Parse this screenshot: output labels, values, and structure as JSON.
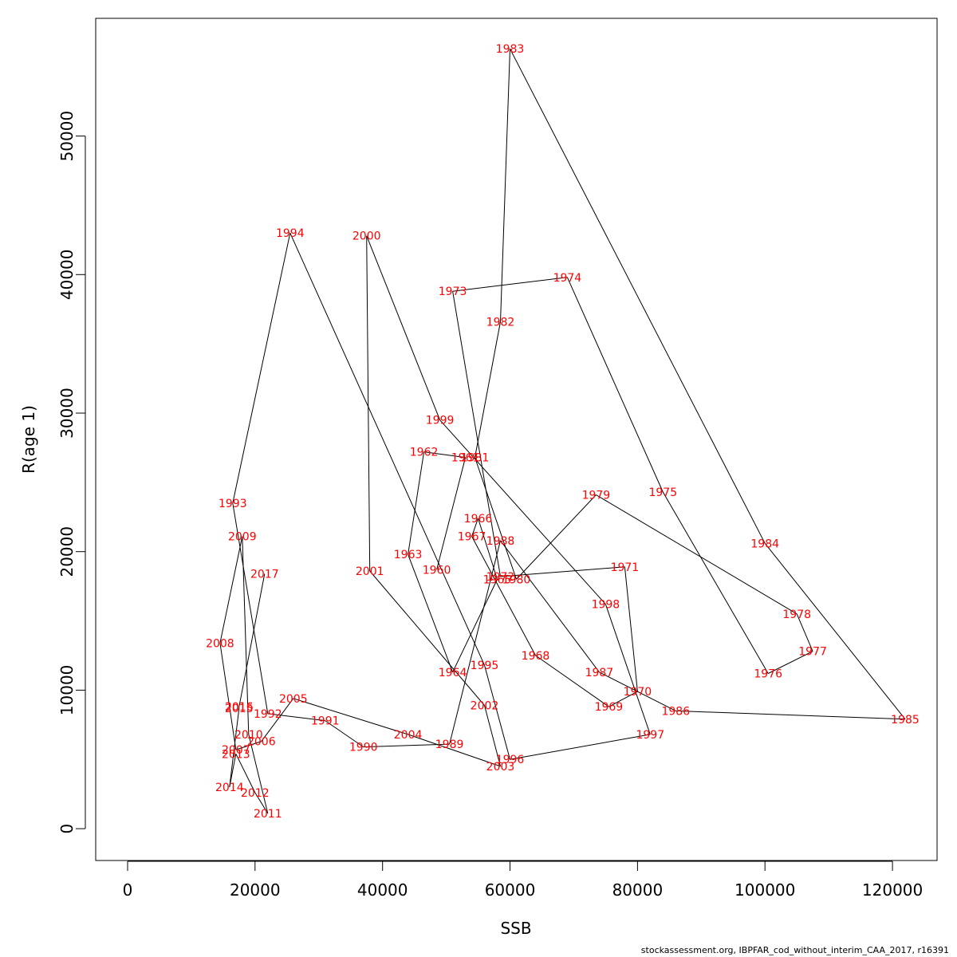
{
  "caption": "stockassessment.org, IBPFAR_cod_without_interim_CAA_2017, r16391",
  "colors": {
    "label": "#ff0000",
    "line": "#000000",
    "axis": "#000000"
  },
  "chart_data": {
    "type": "scatter",
    "connected": true,
    "title": "",
    "xlabel": "SSB",
    "ylabel": "R(age 1)",
    "xlim": [
      -5000,
      127000
    ],
    "ylim": [
      -2300,
      58500
    ],
    "xticks": [
      0,
      20000,
      40000,
      60000,
      80000,
      100000,
      120000
    ],
    "yticks": [
      0,
      10000,
      20000,
      30000,
      40000,
      50000
    ],
    "grid": false,
    "points": [
      {
        "label": "1960",
        "x": 48500,
        "y": 18700
      },
      {
        "label": "1961",
        "x": 53000,
        "y": 26800
      },
      {
        "label": "1962",
        "x": 46500,
        "y": 27200
      },
      {
        "label": "1963",
        "x": 44000,
        "y": 19800
      },
      {
        "label": "1964",
        "x": 51000,
        "y": 11300
      },
      {
        "label": "1965",
        "x": 58000,
        "y": 18000
      },
      {
        "label": "1966",
        "x": 55000,
        "y": 22400
      },
      {
        "label": "1967",
        "x": 54000,
        "y": 21100
      },
      {
        "label": "1968",
        "x": 64000,
        "y": 12500
      },
      {
        "label": "1969",
        "x": 75500,
        "y": 8800
      },
      {
        "label": "1970",
        "x": 80000,
        "y": 9900
      },
      {
        "label": "1971",
        "x": 78000,
        "y": 18900
      },
      {
        "label": "1972",
        "x": 58500,
        "y": 18200
      },
      {
        "label": "1973",
        "x": 51000,
        "y": 38800
      },
      {
        "label": "1974",
        "x": 69000,
        "y": 39800
      },
      {
        "label": "1975",
        "x": 84000,
        "y": 24300
      },
      {
        "label": "1976",
        "x": 100500,
        "y": 11200
      },
      {
        "label": "1977",
        "x": 107500,
        "y": 12800
      },
      {
        "label": "1978",
        "x": 105000,
        "y": 15500
      },
      {
        "label": "1979",
        "x": 73500,
        "y": 24100
      },
      {
        "label": "1980",
        "x": 61000,
        "y": 18000
      },
      {
        "label": "1981",
        "x": 54500,
        "y": 26800
      },
      {
        "label": "1982",
        "x": 58500,
        "y": 36600
      },
      {
        "label": "1983",
        "x": 60000,
        "y": 56300
      },
      {
        "label": "1984",
        "x": 100000,
        "y": 20600
      },
      {
        "label": "1985",
        "x": 122000,
        "y": 7900
      },
      {
        "label": "1986",
        "x": 86000,
        "y": 8500
      },
      {
        "label": "1987",
        "x": 74000,
        "y": 11300
      },
      {
        "label": "1988",
        "x": 58500,
        "y": 20800
      },
      {
        "label": "1989",
        "x": 50500,
        "y": 6100
      },
      {
        "label": "1990",
        "x": 37000,
        "y": 5900
      },
      {
        "label": "1991",
        "x": 31000,
        "y": 7800
      },
      {
        "label": "1992",
        "x": 22000,
        "y": 8300
      },
      {
        "label": "1993",
        "x": 16500,
        "y": 23500
      },
      {
        "label": "1994",
        "x": 25500,
        "y": 43000
      },
      {
        "label": "1995",
        "x": 56000,
        "y": 11800
      },
      {
        "label": "1996",
        "x": 60000,
        "y": 5000
      },
      {
        "label": "1997",
        "x": 82000,
        "y": 6800
      },
      {
        "label": "1998",
        "x": 75000,
        "y": 16200
      },
      {
        "label": "1999",
        "x": 49000,
        "y": 29500
      },
      {
        "label": "2000",
        "x": 37500,
        "y": 42800
      },
      {
        "label": "2001",
        "x": 38000,
        "y": 18600
      },
      {
        "label": "2002",
        "x": 56000,
        "y": 8900
      },
      {
        "label": "2003",
        "x": 58500,
        "y": 4500
      },
      {
        "label": "2004",
        "x": 44000,
        "y": 6800
      },
      {
        "label": "2005",
        "x": 26000,
        "y": 9400
      },
      {
        "label": "2006",
        "x": 21000,
        "y": 6300
      },
      {
        "label": "2007",
        "x": 17000,
        "y": 5700
      },
      {
        "label": "2008",
        "x": 14500,
        "y": 13400
      },
      {
        "label": "2009",
        "x": 18000,
        "y": 21100
      },
      {
        "label": "2010",
        "x": 19000,
        "y": 6800
      },
      {
        "label": "2011",
        "x": 22000,
        "y": 1100
      },
      {
        "label": "2012",
        "x": 20000,
        "y": 2600
      },
      {
        "label": "2013",
        "x": 17000,
        "y": 5400
      },
      {
        "label": "2014",
        "x": 16000,
        "y": 3000
      },
      {
        "label": "2015",
        "x": 17500,
        "y": 8700
      },
      {
        "label": "2016",
        "x": 17500,
        "y": 8800
      },
      {
        "label": "2017",
        "x": 21500,
        "y": 18400
      }
    ]
  }
}
